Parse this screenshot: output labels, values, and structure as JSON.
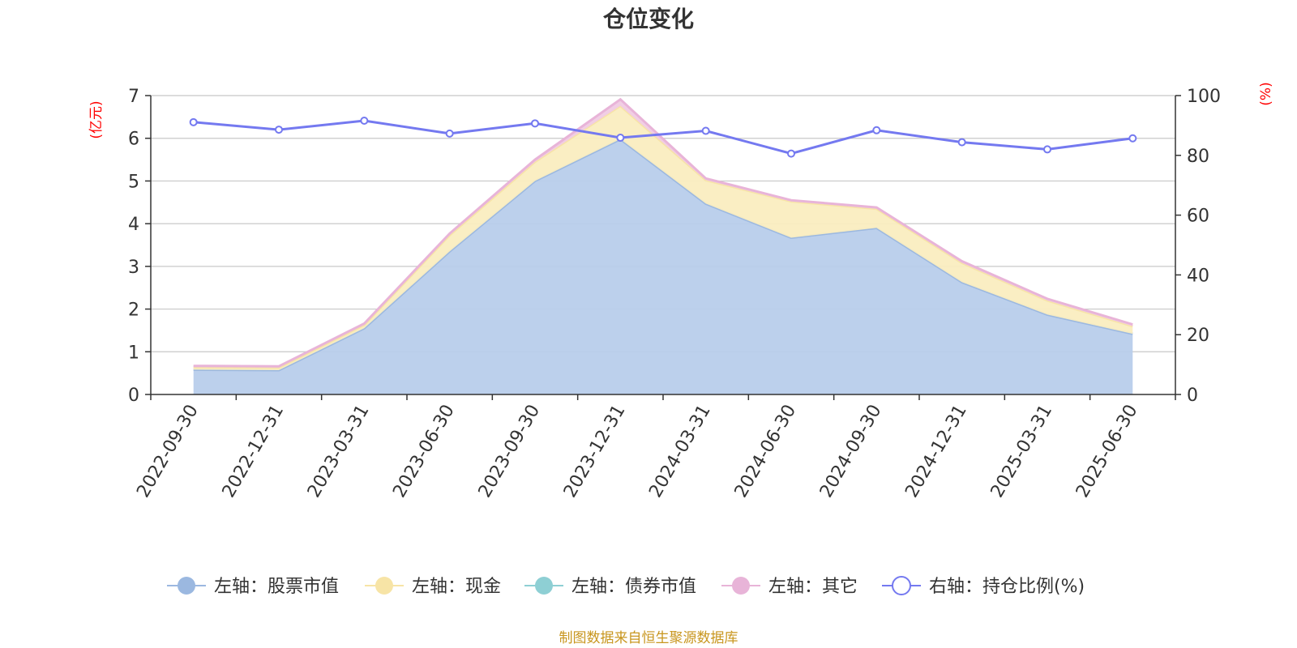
{
  "chart_data": {
    "type": "area",
    "title": "仓位变化",
    "source_note": "制图数据来自恒生聚源数据库",
    "left_axis": {
      "unit": "(亿元)",
      "min": 0,
      "max": 7,
      "ticks": [
        0,
        1,
        2,
        3,
        4,
        5,
        6,
        7
      ]
    },
    "right_axis": {
      "unit": "(%)",
      "min": 0,
      "max": 100,
      "ticks": [
        0,
        20,
        40,
        60,
        80,
        100
      ]
    },
    "categories": [
      "2022-09-30",
      "2022-12-31",
      "2023-03-31",
      "2023-06-30",
      "2023-09-30",
      "2023-12-31",
      "2024-03-31",
      "2024-06-30",
      "2024-09-30",
      "2024-12-31",
      "2025-03-31",
      "2025-06-30"
    ],
    "grid": true,
    "legend_position": "bottom",
    "series": [
      {
        "name": "左轴：股票市值",
        "axis": "left",
        "kind": "area",
        "color": "#9bb8e0",
        "fill": "#b8cdeb",
        "values": [
          0.58,
          0.57,
          1.55,
          3.35,
          5.0,
          5.98,
          4.47,
          3.67,
          3.9,
          2.63,
          1.87,
          1.42
        ]
      },
      {
        "name": "左轴：现金",
        "axis": "left",
        "kind": "area",
        "color": "#f7e4a6",
        "fill": "#faedc0",
        "values": [
          0.06,
          0.06,
          0.08,
          0.38,
          0.45,
          0.78,
          0.55,
          0.85,
          0.45,
          0.45,
          0.33,
          0.18
        ]
      },
      {
        "name": "左轴：债券市值",
        "axis": "left",
        "kind": "area",
        "color": "#8ecfd4",
        "fill": "#bfe6e8",
        "values": [
          0,
          0,
          0,
          0,
          0,
          0,
          0,
          0,
          0,
          0,
          0,
          0
        ]
      },
      {
        "name": "左轴：其它",
        "axis": "left",
        "kind": "area",
        "color": "#e8b4d8",
        "fill": "#f0cbe4",
        "values": [
          0.03,
          0.03,
          0.03,
          0.04,
          0.05,
          0.15,
          0.04,
          0.03,
          0.03,
          0.04,
          0.04,
          0.04
        ]
      },
      {
        "name": "右轴：持仓比例(%)",
        "axis": "right",
        "kind": "line",
        "color": "#7479f0",
        "values": [
          91.1,
          88.6,
          91.6,
          87.3,
          90.7,
          85.9,
          88.2,
          80.6,
          88.4,
          84.4,
          82.0,
          85.7
        ]
      }
    ]
  }
}
